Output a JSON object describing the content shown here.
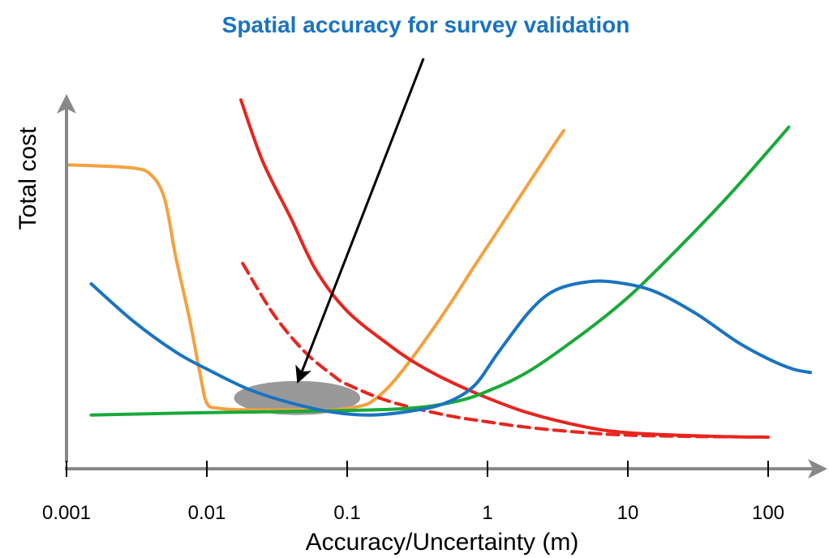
{
  "chart_data": {
    "type": "line",
    "title": "Spatial accuracy for survey validation",
    "xlabel": "Accuracy/Uncertainty (m)",
    "ylabel": "Total cost",
    "x_scale": "log",
    "xlim": [
      0.001,
      200
    ],
    "ylim": [
      0,
      100
    ],
    "ticks": [
      {
        "value": 0.001,
        "label": "0.001"
      },
      {
        "value": 0.01,
        "label": "0.01"
      },
      {
        "value": 0.1,
        "label": "0.1"
      },
      {
        "value": 1,
        "label": "1"
      },
      {
        "value": 10,
        "label": "10"
      },
      {
        "value": 100,
        "label": "100"
      }
    ],
    "grid": false,
    "legend": "none",
    "series": [
      {
        "color": "#f4a13f",
        "style": "solid",
        "points": [
          [
            0.0008,
            85
          ],
          [
            0.0015,
            84.7
          ],
          [
            0.003,
            84
          ],
          [
            0.004,
            82
          ],
          [
            0.005,
            75
          ],
          [
            0.006,
            58
          ],
          [
            0.0075,
            40
          ],
          [
            0.009,
            23
          ],
          [
            0.01,
            15
          ],
          [
            0.012,
            13.5
          ],
          [
            0.02,
            13
          ],
          [
            0.05,
            13
          ],
          [
            0.08,
            13
          ],
          [
            0.12,
            14
          ],
          [
            0.15,
            15.5
          ],
          [
            0.2,
            20
          ],
          [
            0.3,
            29
          ],
          [
            0.5,
            42
          ],
          [
            0.8,
            55
          ],
          [
            1.2,
            66
          ],
          [
            2,
            80
          ],
          [
            3,
            91
          ],
          [
            3.5,
            95
          ]
        ]
      },
      {
        "color": "#e8251f",
        "style": "solid",
        "points": [
          [
            0.0175,
            104
          ],
          [
            0.025,
            86
          ],
          [
            0.04,
            69
          ],
          [
            0.06,
            54
          ],
          [
            0.1,
            42
          ],
          [
            0.2,
            32
          ],
          [
            0.3,
            27
          ],
          [
            0.5,
            22
          ],
          [
            1,
            16.5
          ],
          [
            2,
            12
          ],
          [
            5,
            8
          ],
          [
            10,
            6.3
          ],
          [
            30,
            5.4
          ],
          [
            60,
            5.1
          ],
          [
            100,
            5
          ]
        ]
      },
      {
        "color": "#e8251f",
        "style": "dashed",
        "points": [
          [
            0.018,
            56
          ],
          [
            0.03,
            41
          ],
          [
            0.05,
            30
          ],
          [
            0.08,
            23
          ],
          [
            0.1,
            20.5
          ],
          [
            0.2,
            15.5
          ],
          [
            0.5,
            11.5
          ],
          [
            1,
            9.5
          ],
          [
            2,
            7.8
          ],
          [
            5,
            6.3
          ],
          [
            10,
            5.6
          ],
          [
            30,
            5.2
          ],
          [
            60,
            5.1
          ]
        ]
      },
      {
        "color": "#1a73c1",
        "style": "solid",
        "points": [
          [
            0.0015,
            50
          ],
          [
            0.003,
            39
          ],
          [
            0.006,
            30
          ],
          [
            0.01,
            25
          ],
          [
            0.02,
            19
          ],
          [
            0.04,
            15
          ],
          [
            0.08,
            12.3
          ],
          [
            0.15,
            11.5
          ],
          [
            0.3,
            12.8
          ],
          [
            0.5,
            15
          ],
          [
            0.8,
            20
          ],
          [
            1.2,
            30
          ],
          [
            2,
            42
          ],
          [
            3,
            48
          ],
          [
            5,
            50.5
          ],
          [
            8,
            50.5
          ],
          [
            15,
            48
          ],
          [
            30,
            41.5
          ],
          [
            60,
            33
          ],
          [
            100,
            28
          ],
          [
            150,
            25
          ],
          [
            200,
            24
          ]
        ]
      },
      {
        "color": "#19a93a",
        "style": "solid",
        "points": [
          [
            0.0015,
            11.5
          ],
          [
            0.01,
            12.2
          ],
          [
            0.1,
            12.8
          ],
          [
            0.3,
            13.6
          ],
          [
            0.6,
            15.5
          ],
          [
            1,
            18.5
          ],
          [
            2,
            24.5
          ],
          [
            5,
            36
          ],
          [
            10,
            46
          ],
          [
            20,
            58
          ],
          [
            50,
            75
          ],
          [
            100,
            89
          ],
          [
            140,
            96
          ]
        ]
      }
    ],
    "annotations": [
      {
        "type": "arrow",
        "color": "#000000",
        "from": [
          0.35,
          100
        ],
        "to": [
          0.045,
          25
        ]
      },
      {
        "type": "ellipse",
        "color": "#999999",
        "center": [
          0.044,
          16.5
        ],
        "rx_decades": 0.45,
        "ry_units": 5
      }
    ]
  }
}
